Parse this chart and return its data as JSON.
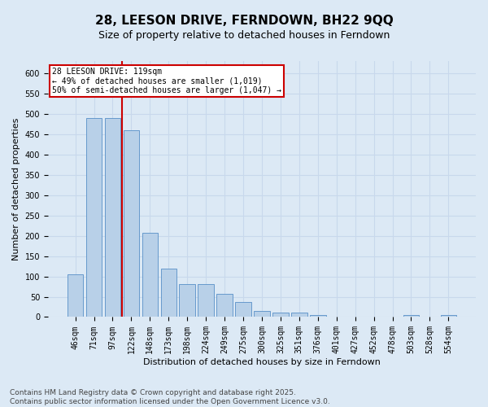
{
  "title": "28, LEESON DRIVE, FERNDOWN, BH22 9QQ",
  "subtitle": "Size of property relative to detached houses in Ferndown",
  "xlabel": "Distribution of detached houses by size in Ferndown",
  "ylabel": "Number of detached properties",
  "categories": [
    "46sqm",
    "71sqm",
    "97sqm",
    "122sqm",
    "148sqm",
    "173sqm",
    "198sqm",
    "224sqm",
    "249sqm",
    "275sqm",
    "300sqm",
    "325sqm",
    "351sqm",
    "376sqm",
    "401sqm",
    "427sqm",
    "452sqm",
    "478sqm",
    "503sqm",
    "528sqm",
    "554sqm"
  ],
  "values": [
    105,
    490,
    490,
    460,
    207,
    120,
    82,
    82,
    57,
    38,
    15,
    10,
    10,
    5,
    1,
    1,
    0,
    0,
    5,
    0,
    5
  ],
  "bar_color": "#b8d0e8",
  "bar_edge_color": "#6699cc",
  "background_color": "#dce9f5",
  "plot_bg_color": "#dce9f5",
  "grid_color": "#c8d8ec",
  "vline_color": "#cc0000",
  "annotation_text": "28 LEESON DRIVE: 119sqm\n← 49% of detached houses are smaller (1,019)\n50% of semi-detached houses are larger (1,047) →",
  "annotation_box_color": "#cc0000",
  "ylim": [
    0,
    630
  ],
  "yticks": [
    0,
    50,
    100,
    150,
    200,
    250,
    300,
    350,
    400,
    450,
    500,
    550,
    600
  ],
  "footer": "Contains HM Land Registry data © Crown copyright and database right 2025.\nContains public sector information licensed under the Open Government Licence v3.0.",
  "title_fontsize": 11,
  "subtitle_fontsize": 9,
  "label_fontsize": 8,
  "tick_fontsize": 7,
  "annotation_fontsize": 7,
  "footer_fontsize": 6.5
}
